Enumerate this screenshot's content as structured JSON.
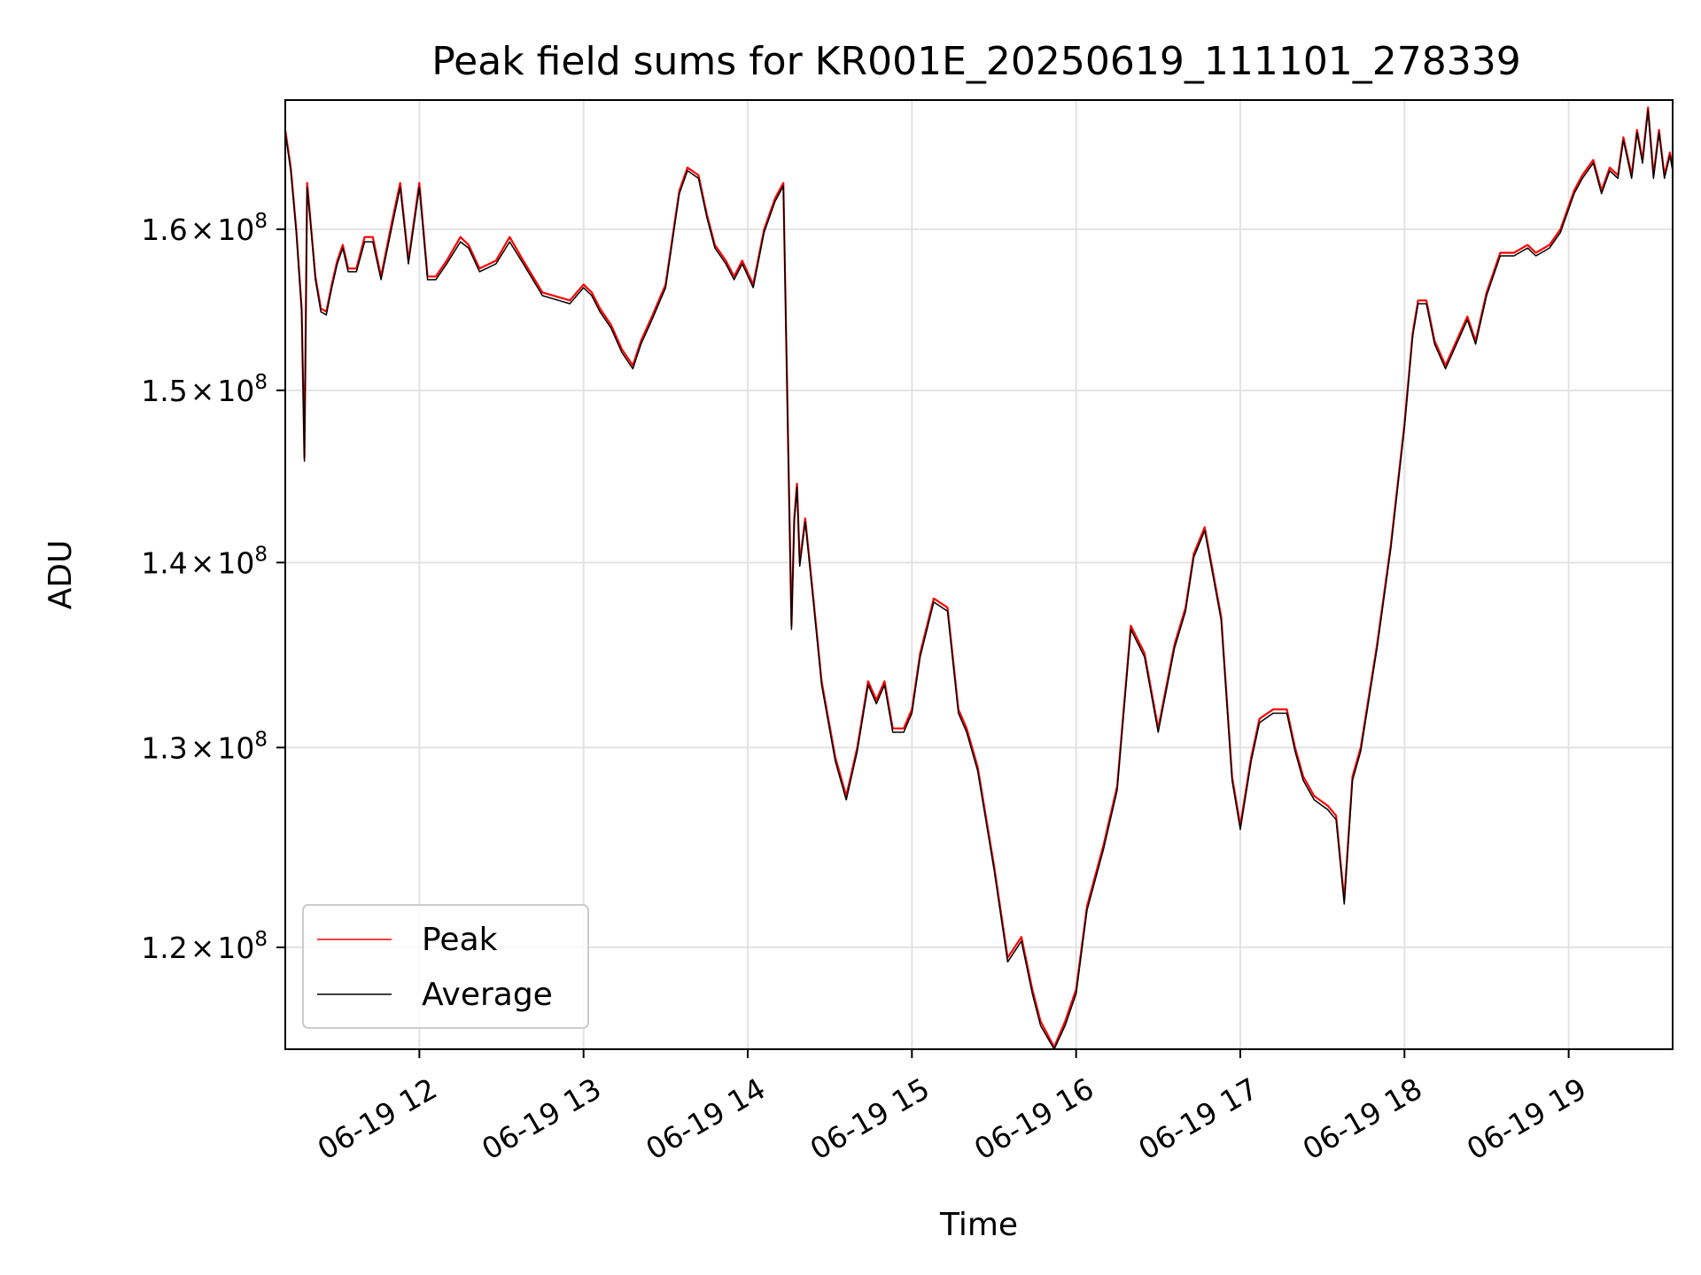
{
  "chart_data": {
    "type": "line",
    "title": "Peak field sums for KR001E_20250619_111101_278339",
    "xlabel": "Time",
    "ylabel": "ADU",
    "x_type": "time",
    "x_range": [
      "2025-06-19T11:11:00",
      "2025-06-19T19:38:00"
    ],
    "x_ticks": [
      {
        "t": "2025-06-19T12:00:00",
        "label": "06-19 12"
      },
      {
        "t": "2025-06-19T13:00:00",
        "label": "06-19 13"
      },
      {
        "t": "2025-06-19T14:00:00",
        "label": "06-19 14"
      },
      {
        "t": "2025-06-19T15:00:00",
        "label": "06-19 15"
      },
      {
        "t": "2025-06-19T16:00:00",
        "label": "06-19 16"
      },
      {
        "t": "2025-06-19T17:00:00",
        "label": "06-19 17"
      },
      {
        "t": "2025-06-19T18:00:00",
        "label": "06-19 18"
      },
      {
        "t": "2025-06-19T19:00:00",
        "label": "06-19 19"
      }
    ],
    "y_scale": "log",
    "y_range": [
      115200000,
      168500000
    ],
    "y_ticks": [
      {
        "value": 120000000,
        "mantissa": "1.2",
        "exponent": "8"
      },
      {
        "value": 130000000,
        "mantissa": "1.3",
        "exponent": "8"
      },
      {
        "value": 140000000,
        "mantissa": "1.4",
        "exponent": "8"
      },
      {
        "value": 150000000,
        "mantissa": "1.5",
        "exponent": "8"
      },
      {
        "value": 160000000,
        "mantissa": "1.6",
        "exponent": "8"
      }
    ],
    "tick_multiply_sign": "×",
    "tick_base": "10",
    "grid": true,
    "legend_position": "lower-left",
    "series": [
      {
        "name": "Peak",
        "color": "#ff0000",
        "x": [
          "2025-06-19T11:11:00",
          "2025-06-19T11:13:00",
          "2025-06-19T11:15:00",
          "2025-06-19T11:17:00",
          "2025-06-19T11:18:00",
          "2025-06-19T11:19:00",
          "2025-06-19T11:20:00",
          "2025-06-19T11:22:00",
          "2025-06-19T11:24:00",
          "2025-06-19T11:26:00",
          "2025-06-19T11:28:00",
          "2025-06-19T11:30:00",
          "2025-06-19T11:32:00",
          "2025-06-19T11:34:00",
          "2025-06-19T11:37:00",
          "2025-06-19T11:40:00",
          "2025-06-19T11:43:00",
          "2025-06-19T11:46:00",
          "2025-06-19T11:50:00",
          "2025-06-19T11:53:00",
          "2025-06-19T11:56:00",
          "2025-06-19T12:00:00",
          "2025-06-19T12:03:00",
          "2025-06-19T12:06:00",
          "2025-06-19T12:10:00",
          "2025-06-19T12:15:00",
          "2025-06-19T12:18:00",
          "2025-06-19T12:22:00",
          "2025-06-19T12:28:00",
          "2025-06-19T12:33:00",
          "2025-06-19T12:38:00",
          "2025-06-19T12:45:00",
          "2025-06-19T12:55:00",
          "2025-06-19T13:00:00",
          "2025-06-19T13:03:00",
          "2025-06-19T13:06:00",
          "2025-06-19T13:10:00",
          "2025-06-19T13:14:00",
          "2025-06-19T13:18:00",
          "2025-06-19T13:21:00",
          "2025-06-19T13:25:00",
          "2025-06-19T13:30:00",
          "2025-06-19T13:35:00",
          "2025-06-19T13:38:00",
          "2025-06-19T13:42:00",
          "2025-06-19T13:45:00",
          "2025-06-19T13:48:00",
          "2025-06-19T13:52:00",
          "2025-06-19T13:55:00",
          "2025-06-19T13:58:00",
          "2025-06-19T14:02:00",
          "2025-06-19T14:06:00",
          "2025-06-19T14:10:00",
          "2025-06-19T14:13:00",
          "2025-06-19T14:16:00",
          "2025-06-19T14:17:00",
          "2025-06-19T14:18:00",
          "2025-06-19T14:19:00",
          "2025-06-19T14:21:00",
          "2025-06-19T14:24:00",
          "2025-06-19T14:27:00",
          "2025-06-19T14:32:00",
          "2025-06-19T14:36:00",
          "2025-06-19T14:40:00",
          "2025-06-19T14:44:00",
          "2025-06-19T14:47:00",
          "2025-06-19T14:50:00",
          "2025-06-19T14:53:00",
          "2025-06-19T14:57:00",
          "2025-06-19T15:00:00",
          "2025-06-19T15:03:00",
          "2025-06-19T15:08:00",
          "2025-06-19T15:13:00",
          "2025-06-19T15:17:00",
          "2025-06-19T15:20:00",
          "2025-06-19T15:24:00",
          "2025-06-19T15:30:00",
          "2025-06-19T15:35:00",
          "2025-06-19T15:40:00",
          "2025-06-19T15:44:00",
          "2025-06-19T15:47:00",
          "2025-06-19T15:52:00",
          "2025-06-19T15:56:00",
          "2025-06-19T16:00:00",
          "2025-06-19T16:04:00",
          "2025-06-19T16:10:00",
          "2025-06-19T16:15:00",
          "2025-06-19T16:20:00",
          "2025-06-19T16:25:00",
          "2025-06-19T16:30:00",
          "2025-06-19T16:36:00",
          "2025-06-19T16:40:00",
          "2025-06-19T16:43:00",
          "2025-06-19T16:47:00",
          "2025-06-19T16:53:00",
          "2025-06-19T16:57:00",
          "2025-06-19T17:00:00",
          "2025-06-19T17:04:00",
          "2025-06-19T17:07:00",
          "2025-06-19T17:12:00",
          "2025-06-19T17:17:00",
          "2025-06-19T17:20:00",
          "2025-06-19T17:23:00",
          "2025-06-19T17:27:00",
          "2025-06-19T17:32:00",
          "2025-06-19T17:35:00",
          "2025-06-19T17:38:00",
          "2025-06-19T17:41:00",
          "2025-06-19T17:44:00",
          "2025-06-19T17:50:00",
          "2025-06-19T17:55:00",
          "2025-06-19T18:00:00",
          "2025-06-19T18:03:00",
          "2025-06-19T18:05:00",
          "2025-06-19T18:08:00",
          "2025-06-19T18:11:00",
          "2025-06-19T18:15:00",
          "2025-06-19T18:19:00",
          "2025-06-19T18:23:00",
          "2025-06-19T18:26:00",
          "2025-06-19T18:30:00",
          "2025-06-19T18:35:00",
          "2025-06-19T18:40:00",
          "2025-06-19T18:45:00",
          "2025-06-19T18:48:00",
          "2025-06-19T18:53:00",
          "2025-06-19T18:57:00",
          "2025-06-19T19:02:00",
          "2025-06-19T19:05:00",
          "2025-06-19T19:09:00",
          "2025-06-19T19:12:00",
          "2025-06-19T19:15:00",
          "2025-06-19T19:18:00",
          "2025-06-19T19:20:00",
          "2025-06-19T19:23:00",
          "2025-06-19T19:25:00",
          "2025-06-19T19:27:00",
          "2025-06-19T19:29:00",
          "2025-06-19T19:31:00",
          "2025-06-19T19:33:00",
          "2025-06-19T19:35:00",
          "2025-06-19T19:37:00",
          "2025-06-19T19:38:00"
        ],
        "values": [
          166500000,
          164000000,
          160000000,
          155000000,
          146000000,
          163000000,
          161000000,
          157000000,
          155000000,
          154800000,
          156500000,
          158000000,
          159000000,
          157500000,
          157500000,
          159500000,
          159500000,
          157000000,
          160500000,
          163000000,
          158000000,
          163000000,
          157000000,
          157000000,
          158000000,
          159500000,
          159000000,
          157500000,
          158000000,
          159500000,
          158000000,
          156000000,
          155500000,
          156500000,
          156000000,
          155000000,
          154000000,
          152500000,
          151500000,
          153000000,
          154500000,
          156500000,
          162500000,
          164000000,
          163500000,
          161000000,
          159000000,
          158000000,
          157000000,
          158000000,
          156500000,
          160000000,
          162000000,
          163000000,
          136500000,
          142500000,
          144500000,
          140000000,
          142500000,
          138000000,
          133500000,
          129500000,
          127500000,
          130000000,
          133500000,
          132500000,
          133500000,
          131000000,
          131000000,
          132000000,
          135000000,
          138000000,
          137500000,
          132000000,
          131000000,
          129000000,
          124000000,
          119500000,
          120500000,
          118000000,
          116500000,
          115300000,
          116500000,
          118000000,
          122000000,
          125000000,
          128000000,
          136500000,
          135000000,
          131000000,
          135500000,
          137500000,
          140500000,
          142000000,
          137000000,
          128500000,
          126000000,
          129500000,
          131500000,
          132000000,
          132000000,
          130000000,
          128500000,
          127500000,
          127000000,
          126500000,
          122300000,
          128500000,
          130000000,
          135500000,
          141000000,
          148000000,
          153500000,
          155500000,
          155500000,
          153000000,
          151500000,
          153000000,
          154500000,
          153000000,
          156000000,
          158500000,
          158500000,
          159000000,
          158500000,
          159000000,
          160000000,
          162500000,
          163500000,
          164500000,
          162500000,
          164000000,
          163500000,
          166000000,
          163500000,
          166500000,
          164500000,
          168000000,
          163500000,
          166500000,
          163500000,
          165000000,
          164000000
        ]
      },
      {
        "name": "Average",
        "color": "#000000",
        "x": [
          "2025-06-19T11:11:00",
          "2025-06-19T11:13:00",
          "2025-06-19T11:15:00",
          "2025-06-19T11:17:00",
          "2025-06-19T11:18:00",
          "2025-06-19T11:19:00",
          "2025-06-19T11:20:00",
          "2025-06-19T11:22:00",
          "2025-06-19T11:24:00",
          "2025-06-19T11:26:00",
          "2025-06-19T11:28:00",
          "2025-06-19T11:30:00",
          "2025-06-19T11:32:00",
          "2025-06-19T11:34:00",
          "2025-06-19T11:37:00",
          "2025-06-19T11:40:00",
          "2025-06-19T11:43:00",
          "2025-06-19T11:46:00",
          "2025-06-19T11:50:00",
          "2025-06-19T11:53:00",
          "2025-06-19T11:56:00",
          "2025-06-19T12:00:00",
          "2025-06-19T12:03:00",
          "2025-06-19T12:06:00",
          "2025-06-19T12:10:00",
          "2025-06-19T12:15:00",
          "2025-06-19T12:18:00",
          "2025-06-19T12:22:00",
          "2025-06-19T12:28:00",
          "2025-06-19T12:33:00",
          "2025-06-19T12:38:00",
          "2025-06-19T12:45:00",
          "2025-06-19T12:55:00",
          "2025-06-19T13:00:00",
          "2025-06-19T13:03:00",
          "2025-06-19T13:06:00",
          "2025-06-19T13:10:00",
          "2025-06-19T13:14:00",
          "2025-06-19T13:18:00",
          "2025-06-19T13:21:00",
          "2025-06-19T13:25:00",
          "2025-06-19T13:30:00",
          "2025-06-19T13:35:00",
          "2025-06-19T13:38:00",
          "2025-06-19T13:42:00",
          "2025-06-19T13:45:00",
          "2025-06-19T13:48:00",
          "2025-06-19T13:52:00",
          "2025-06-19T13:55:00",
          "2025-06-19T13:58:00",
          "2025-06-19T14:02:00",
          "2025-06-19T14:06:00",
          "2025-06-19T14:10:00",
          "2025-06-19T14:13:00",
          "2025-06-19T14:16:00",
          "2025-06-19T14:17:00",
          "2025-06-19T14:18:00",
          "2025-06-19T14:19:00",
          "2025-06-19T14:21:00",
          "2025-06-19T14:24:00",
          "2025-06-19T14:27:00",
          "2025-06-19T14:32:00",
          "2025-06-19T14:36:00",
          "2025-06-19T14:40:00",
          "2025-06-19T14:44:00",
          "2025-06-19T14:47:00",
          "2025-06-19T14:50:00",
          "2025-06-19T14:53:00",
          "2025-06-19T14:57:00",
          "2025-06-19T15:00:00",
          "2025-06-19T15:03:00",
          "2025-06-19T15:08:00",
          "2025-06-19T15:13:00",
          "2025-06-19T15:17:00",
          "2025-06-19T15:20:00",
          "2025-06-19T15:24:00",
          "2025-06-19T15:30:00",
          "2025-06-19T15:35:00",
          "2025-06-19T15:40:00",
          "2025-06-19T15:44:00",
          "2025-06-19T15:47:00",
          "2025-06-19T15:52:00",
          "2025-06-19T15:56:00",
          "2025-06-19T16:00:00",
          "2025-06-19T16:04:00",
          "2025-06-19T16:10:00",
          "2025-06-19T16:15:00",
          "2025-06-19T16:20:00",
          "2025-06-19T16:25:00",
          "2025-06-19T16:30:00",
          "2025-06-19T16:36:00",
          "2025-06-19T16:40:00",
          "2025-06-19T16:43:00",
          "2025-06-19T16:47:00",
          "2025-06-19T16:53:00",
          "2025-06-19T16:57:00",
          "2025-06-19T17:00:00",
          "2025-06-19T17:04:00",
          "2025-06-19T17:07:00",
          "2025-06-19T17:12:00",
          "2025-06-19T17:17:00",
          "2025-06-19T17:20:00",
          "2025-06-19T17:23:00",
          "2025-06-19T17:27:00",
          "2025-06-19T17:32:00",
          "2025-06-19T17:35:00",
          "2025-06-19T17:38:00",
          "2025-06-19T17:41:00",
          "2025-06-19T17:44:00",
          "2025-06-19T17:50:00",
          "2025-06-19T17:55:00",
          "2025-06-19T18:00:00",
          "2025-06-19T18:03:00",
          "2025-06-19T18:05:00",
          "2025-06-19T18:08:00",
          "2025-06-19T18:11:00",
          "2025-06-19T18:15:00",
          "2025-06-19T18:19:00",
          "2025-06-19T18:23:00",
          "2025-06-19T18:26:00",
          "2025-06-19T18:30:00",
          "2025-06-19T18:35:00",
          "2025-06-19T18:40:00",
          "2025-06-19T18:45:00",
          "2025-06-19T18:48:00",
          "2025-06-19T18:53:00",
          "2025-06-19T18:57:00",
          "2025-06-19T19:02:00",
          "2025-06-19T19:05:00",
          "2025-06-19T19:09:00",
          "2025-06-19T19:12:00",
          "2025-06-19T19:15:00",
          "2025-06-19T19:18:00",
          "2025-06-19T19:20:00",
          "2025-06-19T19:23:00",
          "2025-06-19T19:25:00",
          "2025-06-19T19:27:00",
          "2025-06-19T19:29:00",
          "2025-06-19T19:31:00",
          "2025-06-19T19:33:00",
          "2025-06-19T19:35:00",
          "2025-06-19T19:37:00",
          "2025-06-19T19:38:00"
        ],
        "values": [
          166300000,
          163800000,
          159800000,
          154800000,
          145800000,
          162700000,
          160800000,
          156800000,
          154800000,
          154600000,
          156300000,
          157800000,
          158800000,
          157300000,
          157300000,
          159200000,
          159200000,
          156800000,
          160200000,
          162700000,
          157800000,
          162700000,
          156800000,
          156800000,
          157800000,
          159200000,
          158800000,
          157300000,
          157800000,
          159200000,
          157800000,
          155800000,
          155300000,
          156300000,
          155800000,
          154800000,
          153800000,
          152300000,
          151300000,
          152800000,
          154300000,
          156300000,
          162300000,
          163800000,
          163300000,
          160800000,
          158800000,
          157800000,
          156800000,
          157800000,
          156300000,
          159800000,
          161800000,
          162800000,
          136300000,
          142300000,
          144300000,
          139800000,
          142300000,
          137800000,
          133300000,
          129300000,
          127300000,
          129800000,
          133300000,
          132300000,
          133300000,
          130800000,
          130800000,
          131800000,
          134800000,
          137800000,
          137300000,
          131800000,
          130800000,
          128800000,
          123800000,
          119300000,
          120300000,
          117800000,
          116300000,
          115200000,
          116300000,
          117800000,
          121800000,
          124800000,
          127800000,
          136300000,
          134800000,
          130800000,
          135300000,
          137300000,
          140300000,
          141800000,
          136800000,
          128300000,
          125800000,
          129300000,
          131300000,
          131800000,
          131800000,
          129800000,
          128300000,
          127300000,
          126800000,
          126300000,
          122100000,
          128300000,
          129800000,
          135300000,
          140800000,
          147800000,
          153300000,
          155300000,
          155300000,
          152800000,
          151300000,
          152800000,
          154300000,
          152800000,
          155800000,
          158300000,
          158300000,
          158800000,
          158300000,
          158800000,
          159800000,
          162300000,
          163300000,
          164300000,
          162300000,
          163800000,
          163300000,
          165800000,
          163300000,
          166300000,
          164300000,
          167800000,
          163300000,
          166300000,
          163300000,
          164800000,
          163800000
        ]
      }
    ]
  }
}
